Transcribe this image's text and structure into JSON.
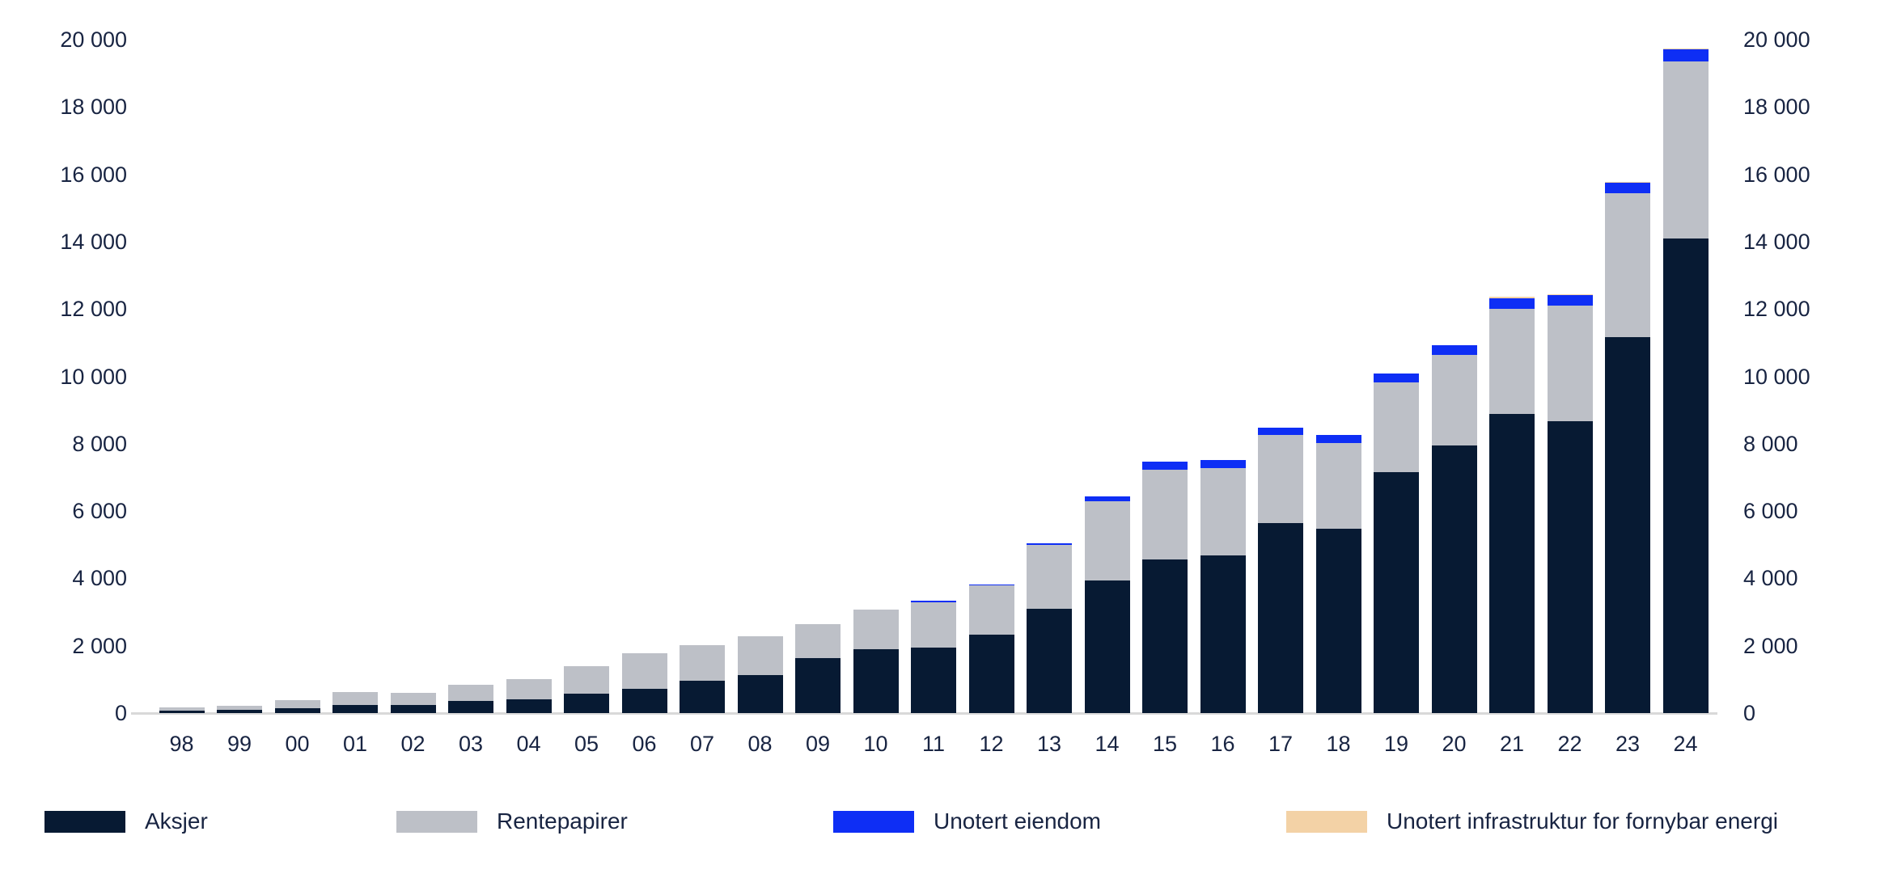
{
  "chart_data": {
    "type": "bar",
    "stacked": true,
    "title": "",
    "xlabel": "",
    "ylabel": "",
    "grid": false,
    "legend_position": "bottom",
    "ylim": [
      0,
      20000
    ],
    "ytick_values": [
      0,
      2000,
      4000,
      6000,
      8000,
      10000,
      12000,
      14000,
      16000,
      18000,
      20000
    ],
    "ytick_labels": [
      "0",
      "2 000",
      "4 000",
      "6 000",
      "8 000",
      "10 000",
      "12 000",
      "14 000",
      "16 000",
      "18 000",
      "20 000"
    ],
    "categories": [
      "98",
      "99",
      "00",
      "01",
      "02",
      "03",
      "04",
      "05",
      "06",
      "07",
      "08",
      "09",
      "10",
      "11",
      "12",
      "13",
      "14",
      "15",
      "16",
      "17",
      "18",
      "19",
      "20",
      "21",
      "22",
      "23",
      "24"
    ],
    "series": [
      {
        "name": "Aksjer",
        "color": "#071a33",
        "values": [
          70,
          94,
          153,
          246,
          231,
          359,
          416,
          582,
          726,
          958,
          1129,
          1644,
          1891,
          1945,
          2336,
          3107,
          3940,
          4572,
          4692,
          5653,
          5477,
          7145,
          7946,
          8878,
          8677,
          11175,
          14094
        ]
      },
      {
        "name": "Rentepapirer",
        "color": "#bdc0c7",
        "values": [
          102,
          128,
          234,
          367,
          378,
          486,
          600,
          817,
          1058,
          1061,
          1146,
          996,
          1186,
          1356,
          1455,
          1879,
          2350,
          2667,
          2577,
          2616,
          2533,
          2670,
          2695,
          3135,
          3418,
          4275,
          5264
        ]
      },
      {
        "name": "Unotert eiendom",
        "color": "#0e2ef5",
        "values": [
          0,
          0,
          0,
          0,
          0,
          0,
          0,
          0,
          0,
          0,
          0,
          0,
          0,
          11,
          25,
          52,
          141,
          232,
          242,
          219,
          246,
          273,
          273,
          313,
          322,
          300,
          355
        ]
      },
      {
        "name": "Unotert infrastruktur for fornybar energi",
        "color": "#f3d2a6",
        "values": [
          0,
          0,
          0,
          0,
          0,
          0,
          0,
          0,
          0,
          0,
          0,
          0,
          0,
          0,
          0,
          0,
          0,
          0,
          0,
          0,
          0,
          0,
          0,
          14,
          12,
          16,
          29
        ]
      }
    ]
  },
  "colors": {
    "text": "#182442",
    "axis_line": "#d9d9d9",
    "background": "#ffffff"
  }
}
